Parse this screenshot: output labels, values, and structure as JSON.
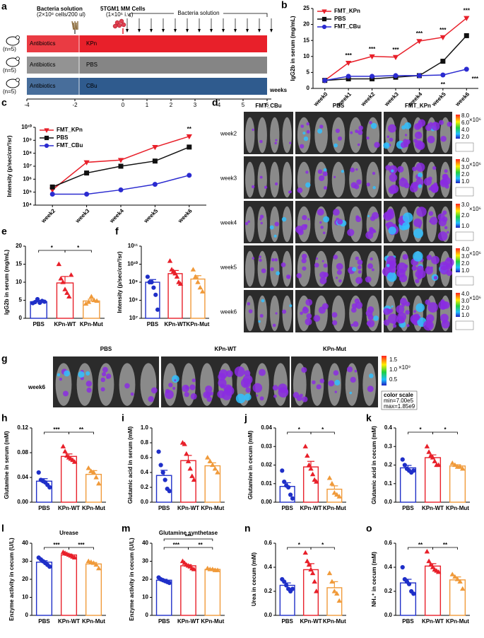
{
  "schematic": {
    "panel": "a",
    "bacteria_label": "Bacteria solution",
    "bacteria_dose": "(2×10⁸ cells/200 ul)",
    "cells_label": "5TGM1 MM Cells",
    "cells_dose": "(1×10⁶ i.v.)",
    "repeat_label": "Bacteria solution",
    "rows": [
      {
        "treatment": "Antibiotics",
        "group": "KPn",
        "n": "(n=5)",
        "color": "#e8202a"
      },
      {
        "treatment": "Antibiotics",
        "group": "PBS",
        "n": "(n=5)",
        "color": "#858585"
      },
      {
        "treatment": "Antibiotics",
        "group": "CBu",
        "n": "(n=5)",
        "color": "#2f5b8e"
      }
    ],
    "ticks": [
      -4,
      -2,
      0,
      1,
      2,
      3,
      4,
      5,
      6
    ],
    "axis_label": "weeks"
  },
  "imaging_d": {
    "panel": "d",
    "columns": [
      {
        "name": "FMT_CBu",
        "color": "#3355bb"
      },
      {
        "name": "PBS",
        "color": "#000000"
      },
      {
        "name": "FMT_KPn",
        "color": "#e8202a"
      }
    ],
    "rows": [
      {
        "name": "week2",
        "colorbar": [
          "8.0",
          "6.0",
          "4.0",
          "2.0"
        ]
      },
      {
        "name": "week3",
        "colorbar": [
          "4.0",
          "3.0",
          "2.0",
          "1.0"
        ]
      },
      {
        "name": "week4",
        "colorbar": [
          "3.0",
          "2.0",
          "1.0"
        ]
      },
      {
        "name": "week5",
        "colorbar": [
          "4.0",
          "3.0",
          "2.0",
          "1.0"
        ]
      },
      {
        "name": "week6",
        "colorbar": [
          "4.0",
          "3.0",
          "2.0",
          "1.0"
        ]
      }
    ],
    "unit": "×10⁶"
  },
  "imaging_g": {
    "panel": "g",
    "columns": [
      {
        "name": "PBS",
        "color": "#2a6fd6"
      },
      {
        "name": "KPn-WT",
        "color": "#e8202a"
      },
      {
        "name": "KPn-Mut",
        "color": "#e89a3a"
      }
    ],
    "row": "week6",
    "colorbar": [
      "1.5",
      "1.0",
      "0.5"
    ],
    "unit": "×10⁹",
    "scale_title": "color scale",
    "scale_min": "min=7.00e5",
    "scale_max": "max=1.85e9"
  },
  "chart_data": [
    {
      "panel": "b",
      "type": "line",
      "ylabel": "IgG2b in serum (mg/mL)",
      "categories": [
        "week0",
        "week1",
        "week2",
        "week3",
        "week4",
        "week5",
        "week6"
      ],
      "ylim": [
        0,
        25
      ],
      "yticks": [
        0,
        5,
        10,
        15,
        20,
        25
      ],
      "legend": "top-left",
      "series": [
        {
          "name": "FMT_KPn",
          "color": "#e8202a",
          "marker": "triangle-down",
          "values": [
            2.5,
            8,
            10,
            9.8,
            14.8,
            16,
            22
          ]
        },
        {
          "name": "PBS",
          "color": "#111111",
          "marker": "square",
          "values": [
            2.5,
            3,
            3,
            3.5,
            4,
            8.5,
            16.5
          ]
        },
        {
          "name": "FMT_CBu",
          "color": "#2b2bd0",
          "marker": "circle",
          "values": [
            2.5,
            3.8,
            3.8,
            4,
            4,
            4.2,
            6
          ]
        }
      ],
      "annotations": [
        {
          "category": 1,
          "label": "***",
          "position": "above"
        },
        {
          "category": 2,
          "label": "***",
          "position": "above"
        },
        {
          "category": 3,
          "label": "***",
          "position": "above"
        },
        {
          "category": 4,
          "label": "***",
          "position": "above"
        },
        {
          "category": 5,
          "label": "***",
          "position": "above"
        },
        {
          "category": 6,
          "label": "***",
          "position": "above"
        },
        {
          "category": 5,
          "label": "**",
          "position": "below"
        },
        {
          "category": 6,
          "label": "***",
          "position": "below"
        }
      ]
    },
    {
      "panel": "c",
      "type": "line",
      "log": true,
      "ylabel": "Intensity (p/sec/cm²/sr)",
      "categories": [
        "week2",
        "week3",
        "week4",
        "week5",
        "week6"
      ],
      "ylim": [
        10000,
        10000000000
      ],
      "yticks": [
        {
          "value": 10000,
          "label": "10⁴"
        },
        {
          "value": 100000,
          "label": "10⁵"
        },
        {
          "value": 1000000,
          "label": "10⁶"
        },
        {
          "value": 10000000,
          "label": "10⁷"
        },
        {
          "value": 100000000,
          "label": "10⁸"
        },
        {
          "value": 1000000000,
          "label": "10⁹"
        },
        {
          "value": 10000000000,
          "label": "10¹⁰"
        }
      ],
      "legend": "top-left",
      "series": [
        {
          "name": "FMT_KPn",
          "color": "#e8202a",
          "marker": "triangle-down",
          "values": [
            150000,
            20000000,
            30000000,
            300000000,
            2000000000
          ]
        },
        {
          "name": "PBS",
          "color": "#111111",
          "marker": "square",
          "values": [
            250000,
            3000000,
            10000000,
            25000000,
            300000000
          ]
        },
        {
          "name": "FMT_CBu",
          "color": "#2b2bd0",
          "marker": "circle",
          "values": [
            70000,
            70000,
            150000,
            400000,
            2000000
          ]
        }
      ],
      "annotations": [
        {
          "category": 4,
          "label": "**",
          "position": "above"
        }
      ]
    },
    {
      "panel": "e",
      "type": "bar_dots",
      "ylabel": "IgG2b in serum (mg/mL)",
      "categories": [
        "PBS",
        "KPn-WT",
        "KPn-Mut"
      ],
      "colors": [
        "#1f2fc8",
        "#e8202a",
        "#f09a3a"
      ],
      "markers": [
        "circle",
        "triangle",
        "triangle"
      ],
      "ylim": [
        0,
        20
      ],
      "yticks": [
        0,
        5,
        10,
        15,
        20
      ],
      "values": [
        4.6,
        9.8,
        4.8
      ],
      "errors": [
        0.4,
        1.8,
        0.5
      ],
      "points": [
        [
          4.2,
          4.5,
          5.3,
          4.3,
          4.8,
          4.6
        ],
        [
          15,
          11,
          10,
          8,
          7,
          6,
          12
        ],
        [
          4,
          4.5,
          6,
          5,
          4.8
        ]
      ],
      "comparisons": [
        {
          "groups": [
            0,
            1
          ],
          "label": "*"
        },
        {
          "groups": [
            1,
            2
          ],
          "label": "*"
        }
      ]
    },
    {
      "panel": "f",
      "type": "bar_dots",
      "log": true,
      "ylabel": "Intensity (p/sec/cm²/sr)",
      "categories": [
        "PBS",
        "KPn-WT",
        "KPn-Mut"
      ],
      "colors": [
        "#1f2fc8",
        "#e8202a",
        "#f09a3a"
      ],
      "markers": [
        "circle",
        "triangle",
        "triangle"
      ],
      "ylim": [
        10000000,
        100000000000
      ],
      "yticks": [
        {
          "value": 10000000,
          "label": "10⁷"
        },
        {
          "value": 100000000,
          "label": "10⁸"
        },
        {
          "value": 1000000000,
          "label": "10⁹"
        },
        {
          "value": 10000000000,
          "label": "10¹⁰"
        },
        {
          "value": 100000000000,
          "label": "10¹¹"
        }
      ],
      "values": [
        1000000000,
        3000000000,
        1500000000
      ],
      "errors": [
        400000000,
        1500000000,
        800000000
      ],
      "points": [
        [
          2000000000,
          1000000000,
          1000000000,
          500000000,
          200000000,
          30000000
        ],
        [
          15000000000,
          5000000000,
          4000000000,
          3000000000,
          2000000000,
          1000000000,
          800000000
        ],
        [
          5000000000,
          2000000000,
          1000000000,
          500000000,
          300000000
        ]
      ],
      "comparisons": []
    },
    {
      "panel": "h",
      "type": "bar_dots",
      "ylabel": "Glutamine in serum (mM)",
      "categories": [
        "PBS",
        "KPn-WT",
        "KPn-Mut"
      ],
      "colors": [
        "#1f2fc8",
        "#e8202a",
        "#f09a3a"
      ],
      "markers": [
        "circle",
        "triangle",
        "triangle"
      ],
      "ylim": [
        0,
        0.12
      ],
      "yticks": [
        {
          "value": 0,
          "label": "0.00"
        },
        {
          "value": 0.04,
          "label": "0.04"
        },
        {
          "value": 0.08,
          "label": "0.08"
        },
        {
          "value": 0.12,
          "label": "0.12"
        }
      ],
      "values": [
        0.034,
        0.074,
        0.045
      ],
      "errors": [
        0.004,
        0.004,
        0.006
      ],
      "points": [
        [
          0.048,
          0.036,
          0.034,
          0.032,
          0.028,
          0.024
        ],
        [
          0.09,
          0.082,
          0.075,
          0.072,
          0.07,
          0.068,
          0.065
        ],
        [
          0.055,
          0.05,
          0.048,
          0.04,
          0.03
        ]
      ],
      "comparisons": [
        {
          "groups": [
            0,
            1
          ],
          "label": "***"
        },
        {
          "groups": [
            1,
            2
          ],
          "label": "**"
        }
      ]
    },
    {
      "panel": "i",
      "type": "bar_dots",
      "ylabel": "Glutamic acid in serum (mM)",
      "categories": [
        "PBS",
        "KPn-WT",
        "KPn-Mut"
      ],
      "colors": [
        "#1f2fc8",
        "#e8202a",
        "#f09a3a"
      ],
      "markers": [
        "circle",
        "triangle",
        "triangle"
      ],
      "ylim": [
        0,
        1
      ],
      "yticks": [
        {
          "value": 0,
          "label": "0.0"
        },
        0.2,
        0.4,
        0.6,
        0.8,
        {
          "value": 1,
          "label": "1.0"
        }
      ],
      "values": [
        0.36,
        0.56,
        0.49
      ],
      "errors": [
        0.07,
        0.07,
        0.04
      ],
      "points": [
        [
          0.68,
          0.5,
          0.4,
          0.3,
          0.18,
          0.15
        ],
        [
          0.8,
          0.78,
          0.65,
          0.55,
          0.45,
          0.35,
          0.3
        ],
        [
          0.6,
          0.55,
          0.5,
          0.45,
          0.4
        ]
      ],
      "comparisons": []
    },
    {
      "panel": "j",
      "type": "bar_dots",
      "ylabel": "Glutamine in cecum (mM)",
      "categories": [
        "PBS",
        "KPn-WT",
        "KPn-Mut"
      ],
      "colors": [
        "#1f2fc8",
        "#e8202a",
        "#f09a3a"
      ],
      "markers": [
        "circle",
        "triangle",
        "triangle"
      ],
      "ylim": [
        0,
        0.04
      ],
      "yticks": [
        {
          "value": 0,
          "label": "0.00"
        },
        {
          "value": 0.01,
          "label": "0.01"
        },
        {
          "value": 0.02,
          "label": "0.02"
        },
        {
          "value": 0.03,
          "label": "0.03"
        },
        {
          "value": 0.04,
          "label": "0.04"
        }
      ],
      "values": [
        0.0085,
        0.019,
        0.007
      ],
      "errors": [
        0.002,
        0.003,
        0.0018
      ],
      "points": [
        [
          0.017,
          0.011,
          0.009,
          0.008,
          0.004,
          0.002
        ],
        [
          0.03,
          0.025,
          0.02,
          0.018,
          0.015,
          0.012,
          0.011
        ],
        [
          0.013,
          0.01,
          0.005,
          0.004,
          0.003
        ]
      ],
      "comparisons": [
        {
          "groups": [
            0,
            1
          ],
          "label": "*"
        },
        {
          "groups": [
            1,
            2
          ],
          "label": "*"
        }
      ]
    },
    {
      "panel": "k",
      "type": "bar_dots",
      "ylabel": "Glutamic acid in cecum (mM)",
      "categories": [
        "PBS",
        "KPn-WT",
        "KPn-Mut"
      ],
      "colors": [
        "#1f2fc8",
        "#e8202a",
        "#f09a3a"
      ],
      "markers": [
        "circle",
        "triangle",
        "triangle"
      ],
      "ylim": [
        0,
        0.4
      ],
      "yticks": [
        {
          "value": 0,
          "label": "0.0"
        },
        0.1,
        0.2,
        0.3,
        0.4
      ],
      "values": [
        0.185,
        0.24,
        0.195
      ],
      "errors": [
        0.013,
        0.015,
        0.007
      ],
      "points": [
        [
          0.23,
          0.2,
          0.18,
          0.17,
          0.16,
          0.17
        ],
        [
          0.3,
          0.27,
          0.25,
          0.24,
          0.22,
          0.2,
          0.2
        ],
        [
          0.21,
          0.2,
          0.19,
          0.19,
          0.18
        ]
      ],
      "comparisons": [
        {
          "groups": [
            0,
            1
          ],
          "label": "*"
        },
        {
          "groups": [
            1,
            2
          ],
          "label": "*"
        }
      ]
    },
    {
      "panel": "l",
      "type": "bar_dots",
      "title": "Urease",
      "ylabel": "Enzyme activity in cecum (U/L)",
      "categories": [
        "PBS",
        "KPn-WT",
        "KPn-Mut"
      ],
      "colors": [
        "#1f2fc8",
        "#e8202a",
        "#f09a3a"
      ],
      "markers": [
        "circle",
        "triangle",
        "triangle"
      ],
      "ylim": [
        0,
        40
      ],
      "yticks": [
        0,
        10,
        20,
        30,
        40
      ],
      "values": [
        29.5,
        33.5,
        28.5
      ],
      "errors": [
        0.8,
        0.5,
        0.8
      ],
      "points": [
        [
          32,
          31,
          30,
          29,
          28,
          27
        ],
        [
          35,
          34.5,
          34,
          33.5,
          33,
          32.5,
          32
        ],
        [
          30,
          29.5,
          29,
          28,
          26
        ]
      ],
      "comparisons": [
        {
          "groups": [
            0,
            1
          ],
          "label": "***"
        },
        {
          "groups": [
            1,
            2
          ],
          "label": "***"
        }
      ]
    },
    {
      "panel": "m",
      "type": "bar_dots",
      "title": "Glutamine synthetase",
      "ylabel": "Enzyme activity in cecum (U/L)",
      "categories": [
        "PBS",
        "KPn-WT",
        "KPn-Mut"
      ],
      "colors": [
        "#1f2fc8",
        "#e8202a",
        "#f09a3a"
      ],
      "markers": [
        "circle",
        "triangle",
        "triangle"
      ],
      "ylim": [
        0,
        40
      ],
      "yticks": [
        0,
        10,
        20,
        30,
        40
      ],
      "values": [
        19.5,
        27.5,
        25.5
      ],
      "errors": [
        0.5,
        0.6,
        0.3
      ],
      "points": [
        [
          21,
          20,
          19.5,
          19,
          18.5,
          18
        ],
        [
          30,
          29,
          28,
          27.5,
          27,
          26,
          25.5
        ],
        [
          26,
          25.5,
          25.5,
          25,
          25
        ]
      ],
      "comparisons": [
        {
          "groups": [
            0,
            1
          ],
          "label": "***"
        },
        {
          "groups": [
            1,
            2
          ],
          "label": "**"
        },
        {
          "groups": [
            0,
            2
          ],
          "label": "***"
        }
      ]
    },
    {
      "panel": "n",
      "type": "bar_dots",
      "ylabel": "Urea in cecum (mM)",
      "categories": [
        "PBS",
        "KPn-WT",
        "KPn-Mut"
      ],
      "colors": [
        "#1f2fc8",
        "#e8202a",
        "#f09a3a"
      ],
      "markers": [
        "circle",
        "triangle",
        "triangle"
      ],
      "ylim": [
        0,
        0.6
      ],
      "yticks": [
        {
          "value": 0,
          "label": "0.0"
        },
        0.2,
        0.4,
        0.6
      ],
      "values": [
        0.25,
        0.38,
        0.23
      ],
      "errors": [
        0.02,
        0.05,
        0.05
      ],
      "points": [
        [
          0.3,
          0.28,
          0.25,
          0.22,
          0.2,
          0.22
        ],
        [
          0.52,
          0.45,
          0.42,
          0.38,
          0.35,
          0.28,
          0.2
        ],
        [
          0.35,
          0.28,
          0.2,
          0.18,
          0.12
        ]
      ],
      "comparisons": [
        {
          "groups": [
            0,
            1
          ],
          "label": "*"
        },
        {
          "groups": [
            1,
            2
          ],
          "label": "*"
        }
      ]
    },
    {
      "panel": "o",
      "type": "bar_dots",
      "ylabel": "NH₄⁺ in cecum (mM)",
      "categories": [
        "PBS",
        "KPn-WT",
        "KPn-Mut"
      ],
      "colors": [
        "#1f2fc8",
        "#e8202a",
        "#f09a3a"
      ],
      "markers": [
        "circle",
        "triangle",
        "triangle"
      ],
      "ylim": [
        0,
        0.6
      ],
      "yticks": [
        {
          "value": 0,
          "label": "0.0"
        },
        0.2,
        0.4,
        0.6
      ],
      "values": [
        0.27,
        0.41,
        0.295
      ],
      "errors": [
        0.03,
        0.02,
        0.025
      ],
      "points": [
        [
          0.4,
          0.3,
          0.28,
          0.26,
          0.2,
          0.18
        ],
        [
          0.53,
          0.45,
          0.42,
          0.4,
          0.38,
          0.37,
          0.36
        ],
        [
          0.34,
          0.32,
          0.3,
          0.28,
          0.22
        ]
      ],
      "comparisons": [
        {
          "groups": [
            0,
            1
          ],
          "label": "**"
        },
        {
          "groups": [
            1,
            2
          ],
          "label": "**"
        }
      ]
    }
  ]
}
